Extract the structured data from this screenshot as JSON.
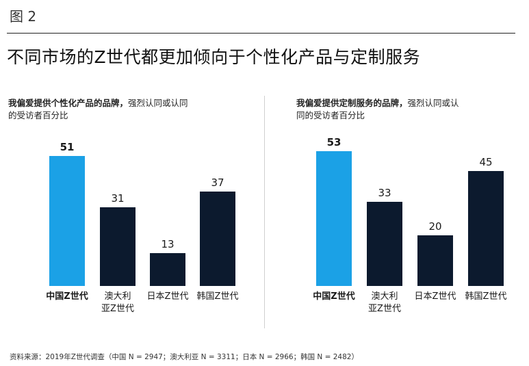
{
  "figure_label": "图 2",
  "headline": "不同市场的Z世代都更加倾向于个性化产品与定制服务",
  "source": "资料来源：2019年Z世代调查（中国 N = 2947；澳大利亚 N = 3311；日本 N = 2966；韩国 N = 2482）",
  "colors": {
    "highlight": "#1ba1e6",
    "dark": "#0c1a2e"
  },
  "chart_data": [
    {
      "type": "bar",
      "title_bold": "我偏爱提供个性化产品的品牌，",
      "title_rest_line1": "强烈认同或认同",
      "title_line2": "的受访者百分比",
      "categories": [
        "中国Z世代",
        "澳大利亚Z世代",
        "日本Z世代",
        "韩国Z世代"
      ],
      "category_lines": [
        [
          "中国Z世代"
        ],
        [
          "澳大利",
          "亚Z世代"
        ],
        [
          "日本Z世代"
        ],
        [
          "韩国Z世代"
        ]
      ],
      "values": [
        51,
        31,
        13,
        37
      ],
      "highlight_index": 0,
      "unit": "%",
      "ylim": [
        0,
        55
      ]
    },
    {
      "type": "bar",
      "title_bold": "我偏爱提供定制服务的品牌，",
      "title_rest_line1": "强烈认同或认",
      "title_line2": "同的受访者百分比",
      "categories": [
        "中国Z世代",
        "澳大利亚Z世代",
        "日本Z世代",
        "韩国Z世代"
      ],
      "category_lines": [
        [
          "中国Z世代"
        ],
        [
          "澳大利",
          "亚Z世代"
        ],
        [
          "日本Z世代"
        ],
        [
          "韩国Z世代"
        ]
      ],
      "values": [
        53,
        33,
        20,
        45
      ],
      "highlight_index": 0,
      "unit": "%",
      "ylim": [
        0,
        55
      ]
    }
  ]
}
